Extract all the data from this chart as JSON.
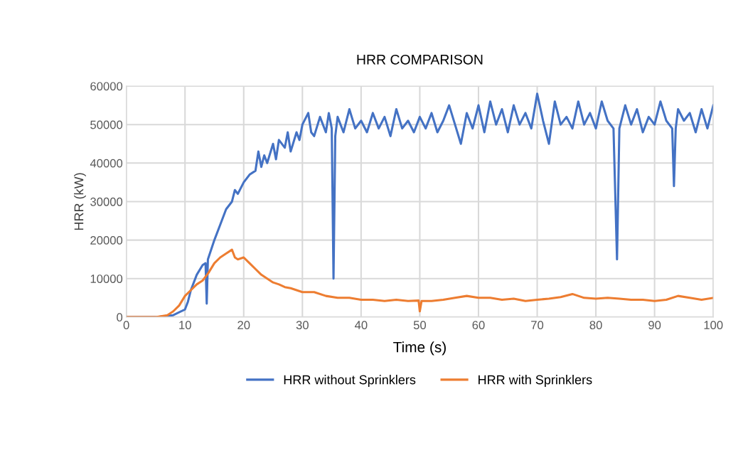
{
  "chart_data": {
    "type": "line",
    "title": "HRR COMPARISON",
    "xlabel": "Time (s)",
    "ylabel": "HRR (kW)",
    "xlim": [
      0,
      100
    ],
    "xticks": [
      0,
      10,
      20,
      30,
      40,
      50,
      60,
      70,
      80,
      90,
      100
    ],
    "ylim": [
      0,
      60000
    ],
    "yticks": [
      0,
      10000,
      20000,
      30000,
      40000,
      50000,
      60000
    ],
    "grid": true,
    "legend": "bottom",
    "marker": "none",
    "line_style": "solid",
    "series": [
      {
        "name": "HRR without Sprinklers",
        "color": "#4472c4",
        "x": [
          0,
          5,
          8,
          10,
          10.5,
          11,
          12,
          13,
          13.5,
          13.7,
          13.9,
          15,
          16,
          17,
          18,
          18.5,
          19,
          20,
          21,
          22,
          22.5,
          23,
          23.5,
          24,
          25,
          25.5,
          26,
          27,
          27.5,
          28,
          29,
          29.5,
          30,
          31,
          31.5,
          32,
          33,
          34,
          34.5,
          35,
          35.3,
          35.6,
          36,
          37,
          38,
          39,
          40,
          41,
          42,
          43,
          44,
          45,
          46,
          47,
          48,
          49,
          50,
          51,
          52,
          53,
          54,
          55,
          56,
          57,
          58,
          59,
          60,
          61,
          62,
          63,
          64,
          65,
          66,
          67,
          68,
          69,
          70,
          71,
          72,
          73,
          74,
          75,
          76,
          77,
          78,
          79,
          80,
          81,
          82,
          83,
          83.6,
          84,
          85,
          86,
          87,
          88,
          89,
          90,
          91,
          92,
          93,
          93.3,
          93.6,
          94,
          95,
          96,
          97,
          98,
          99,
          100
        ],
        "values": [
          0,
          0,
          500,
          2000,
          4000,
          7000,
          11000,
          13500,
          14000,
          3500,
          15000,
          20000,
          24000,
          28000,
          30000,
          33000,
          32000,
          35000,
          37000,
          38000,
          43000,
          39000,
          42000,
          40000,
          45000,
          41000,
          46000,
          44000,
          48000,
          43000,
          48000,
          46000,
          50000,
          53000,
          48000,
          47000,
          52000,
          48000,
          53000,
          49000,
          10000,
          47000,
          52000,
          48000,
          54000,
          49000,
          51000,
          48000,
          53000,
          49000,
          52000,
          47000,
          54000,
          49000,
          51000,
          48000,
          52000,
          49000,
          53000,
          48000,
          51000,
          55000,
          50000,
          45000,
          53000,
          49000,
          55000,
          48000,
          56000,
          50000,
          54000,
          48000,
          55000,
          50000,
          53000,
          49000,
          58000,
          51000,
          45000,
          56000,
          50000,
          52000,
          49000,
          56000,
          50000,
          53000,
          49000,
          56000,
          51000,
          49000,
          15000,
          49000,
          55000,
          50000,
          54000,
          48000,
          52000,
          50000,
          56000,
          51000,
          49000,
          34000,
          49000,
          54000,
          51000,
          53000,
          48000,
          54000,
          49000,
          55000
        ]
      },
      {
        "name": "HRR with Sprinklers",
        "color": "#ed7d31",
        "x": [
          0,
          5,
          7,
          8,
          9,
          10,
          11,
          12,
          13,
          14,
          15,
          16,
          17,
          18,
          18.5,
          19,
          20,
          21,
          22,
          23,
          24,
          25,
          26,
          27,
          28,
          30,
          32,
          34,
          36,
          38,
          40,
          42,
          44,
          46,
          48,
          49.8,
          50,
          50.3,
          52,
          54,
          56,
          58,
          60,
          62,
          64,
          66,
          68,
          70,
          72,
          74,
          76,
          78,
          80,
          82,
          84,
          86,
          88,
          90,
          92,
          94,
          96,
          98,
          100
        ],
        "values": [
          0,
          0,
          500,
          1500,
          3000,
          5500,
          7000,
          8500,
          9500,
          11500,
          14000,
          15500,
          16500,
          17500,
          15500,
          15000,
          15500,
          14000,
          12500,
          11000,
          10000,
          9000,
          8500,
          7800,
          7500,
          6500,
          6500,
          5500,
          5000,
          5000,
          4500,
          4500,
          4200,
          4500,
          4200,
          4300,
          1500,
          4200,
          4200,
          4500,
          5000,
          5500,
          5000,
          5000,
          4500,
          4800,
          4200,
          4500,
          4800,
          5200,
          6000,
          5000,
          4800,
          5000,
          4800,
          4500,
          4500,
          4200,
          4500,
          5500,
          5000,
          4500,
          5000
        ]
      }
    ]
  }
}
